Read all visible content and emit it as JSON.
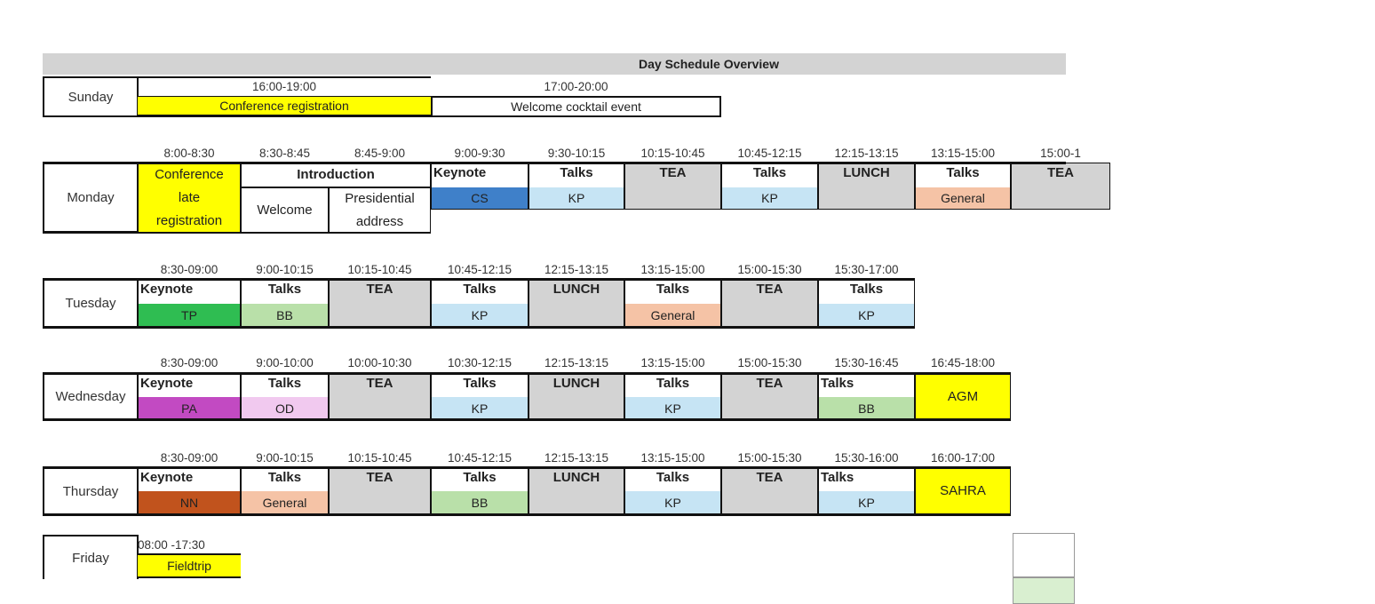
{
  "title": "Day Schedule Overview",
  "colors": {
    "tea_gray": "#d3d3d3",
    "yellow": "#ffff00",
    "kp_blue": "#c6e4f4",
    "cs_blue": "#3f80c9",
    "general_peach": "#f5c3a6",
    "bb_green": "#b9e0a9",
    "tp_green": "#2fbd52",
    "pa_magenta": "#c24ac2",
    "od_pink": "#f1c9ef",
    "nn_rust": "#c1531d"
  },
  "sunday": {
    "day": "Sunday",
    "times": [
      "16:00-19:00",
      "17:00-20:00"
    ],
    "events": [
      "Conference registration",
      "Welcome cocktail event"
    ]
  },
  "monday": {
    "day": "Monday",
    "times": [
      "8:00-8:30",
      "8:30-8:45",
      "8:45-9:00",
      "9:00-9:30",
      "9:30-10:15",
      "10:15-10:45",
      "10:45-12:15",
      "12:15-13:15",
      "13:15-15:00",
      "15:00-1"
    ],
    "registration": "Conference late registration",
    "introduction": "Introduction",
    "welcome": "Welcome",
    "presidential": "Presidential address",
    "cells": [
      {
        "label": "Keynote",
        "sub": "CS",
        "color": "#3f80c9"
      },
      {
        "label": "Talks",
        "sub": "KP",
        "color": "#c6e4f4"
      },
      {
        "label": "TEA",
        "sub": "",
        "color": "#d3d3d3"
      },
      {
        "label": "Talks",
        "sub": "KP",
        "color": "#c6e4f4"
      },
      {
        "label": "LUNCH",
        "sub": "",
        "color": "#d3d3d3"
      },
      {
        "label": "Talks",
        "sub": "General",
        "color": "#f5c3a6"
      },
      {
        "label": "TEA",
        "sub": "",
        "color": "#d3d3d3"
      }
    ]
  },
  "tuesday": {
    "day": "Tuesday",
    "times": [
      "8:30-09:00",
      "9:00-10:15",
      "10:15-10:45",
      "10:45-12:15",
      "12:15-13:15",
      "13:15-15:00",
      "15:00-15:30",
      "15:30-17:00"
    ],
    "cells": [
      {
        "label": "Keynote",
        "sub": "TP",
        "color": "#2fbd52"
      },
      {
        "label": "Talks",
        "sub": "BB",
        "color": "#b9e0a9"
      },
      {
        "label": "TEA",
        "sub": "",
        "color": "#d3d3d3"
      },
      {
        "label": "Talks",
        "sub": "KP",
        "color": "#c6e4f4"
      },
      {
        "label": "LUNCH",
        "sub": "",
        "color": "#d3d3d3"
      },
      {
        "label": "Talks",
        "sub": "General",
        "color": "#f5c3a6"
      },
      {
        "label": "TEA",
        "sub": "",
        "color": "#d3d3d3"
      },
      {
        "label": "Talks",
        "sub": "KP",
        "color": "#c6e4f4"
      }
    ]
  },
  "wednesday": {
    "day": "Wednesday",
    "times": [
      "8:30-09:00",
      "9:00-10:00",
      "10:00-10:30",
      "10:30-12:15",
      "12:15-13:15",
      "13:15-15:00",
      "15:00-15:30",
      "15:30-16:45",
      "16:45-18:00"
    ],
    "cells": [
      {
        "label": "Keynote",
        "sub": "PA",
        "color": "#c24ac2"
      },
      {
        "label": "Talks",
        "sub": "OD",
        "color": "#f1c9ef"
      },
      {
        "label": "TEA",
        "sub": "",
        "color": "#d3d3d3"
      },
      {
        "label": "Talks",
        "sub": "KP",
        "color": "#c6e4f4"
      },
      {
        "label": "LUNCH",
        "sub": "",
        "color": "#d3d3d3"
      },
      {
        "label": "Talks",
        "sub": "KP",
        "color": "#c6e4f4"
      },
      {
        "label": "TEA",
        "sub": "",
        "color": "#d3d3d3"
      },
      {
        "label": "Talks",
        "sub": "BB",
        "color": "#b9e0a9"
      },
      {
        "label": "AGM",
        "sub": "",
        "color": "#ffff00"
      }
    ]
  },
  "thursday": {
    "day": "Thursday",
    "times": [
      "8:30-09:00",
      "9:00-10:15",
      "10:15-10:45",
      "10:45-12:15",
      "12:15-13:15",
      "13:15-15:00",
      "15:00-15:30",
      "15:30-16:00",
      "16:00-17:00"
    ],
    "cells": [
      {
        "label": "Keynote",
        "sub": "NN",
        "color": "#c1531d"
      },
      {
        "label": "Talks",
        "sub": "General",
        "color": "#f5c3a6"
      },
      {
        "label": "TEA",
        "sub": "",
        "color": "#d3d3d3"
      },
      {
        "label": "Talks",
        "sub": "BB",
        "color": "#b9e0a9"
      },
      {
        "label": "LUNCH",
        "sub": "",
        "color": "#d3d3d3"
      },
      {
        "label": "Talks",
        "sub": "KP",
        "color": "#c6e4f4"
      },
      {
        "label": "TEA",
        "sub": "",
        "color": "#d3d3d3"
      },
      {
        "label": "Talks",
        "sub": "KP",
        "color": "#c6e4f4"
      },
      {
        "label": "SAHRA",
        "sub": "",
        "color": "#ffff00"
      }
    ]
  },
  "friday": {
    "day": "Friday",
    "times": [
      "08:00 -17:30"
    ],
    "events": [
      "Fieldtrip"
    ]
  }
}
